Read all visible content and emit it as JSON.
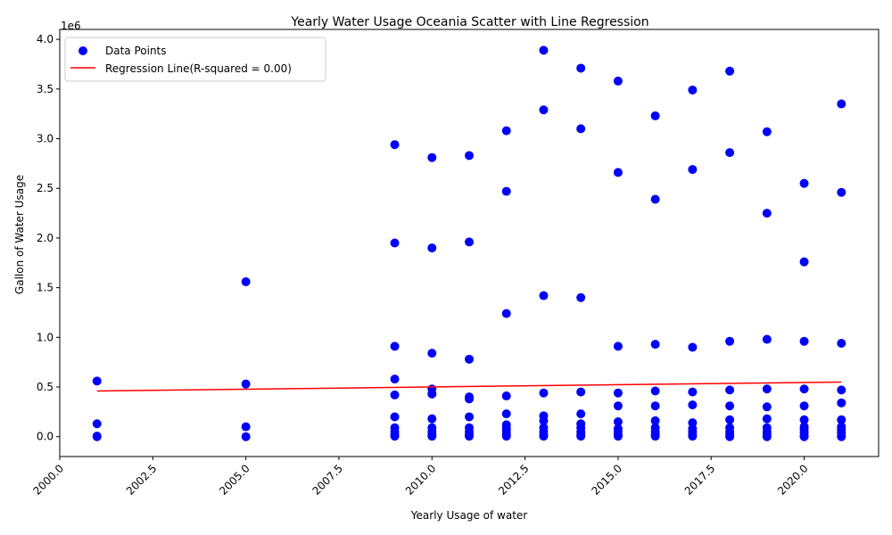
{
  "chart_data": {
    "type": "scatter",
    "title": "Yearly Water Usage Oceania Scatter with Line Regression",
    "xlabel": "Yearly Usage of water",
    "ylabel": "Gallon of Water Usage",
    "y_offset_label": "1e6",
    "xlim": [
      2000,
      2022
    ],
    "ylim": [
      -200000,
      4100000
    ],
    "x_ticks": [
      2000.0,
      2002.5,
      2005.0,
      2007.5,
      2010.0,
      2012.5,
      2015.0,
      2017.5,
      2020.0
    ],
    "x_tick_labels": [
      "2000.0",
      "2002.5",
      "2005.0",
      "2007.5",
      "2010.0",
      "2012.5",
      "2015.0",
      "2017.5",
      "2020.0"
    ],
    "y_ticks": [
      0,
      500000,
      1000000,
      1500000,
      2000000,
      2500000,
      3000000,
      3500000,
      4000000
    ],
    "y_tick_labels": [
      "0.0",
      "0.5",
      "1.0",
      "1.5",
      "2.0",
      "2.5",
      "3.0",
      "3.5",
      "4.0"
    ],
    "grid": false,
    "legend_position": "top-left",
    "series": [
      {
        "name": "Data Points",
        "kind": "scatter",
        "color": "#0000ff",
        "x": [
          2001,
          2001,
          2001,
          2001,
          2005,
          2005,
          2005,
          2005,
          2009,
          2009,
          2009,
          2009,
          2009,
          2009,
          2009,
          2009,
          2009,
          2009,
          2010,
          2010,
          2010,
          2010,
          2010,
          2010,
          2010,
          2010,
          2010,
          2010,
          2011,
          2011,
          2011,
          2011,
          2011,
          2011,
          2011,
          2011,
          2011,
          2011,
          2012,
          2012,
          2012,
          2012,
          2012,
          2012,
          2012,
          2012,
          2012,
          2012,
          2013,
          2013,
          2013,
          2013,
          2013,
          2013,
          2013,
          2013,
          2013,
          2013,
          2014,
          2014,
          2014,
          2014,
          2014,
          2014,
          2014,
          2014,
          2014,
          2014,
          2015,
          2015,
          2015,
          2015,
          2015,
          2015,
          2015,
          2015,
          2015,
          2015,
          2016,
          2016,
          2016,
          2016,
          2016,
          2016,
          2016,
          2016,
          2016,
          2016,
          2017,
          2017,
          2017,
          2017,
          2017,
          2017,
          2017,
          2017,
          2017,
          2017,
          2018,
          2018,
          2018,
          2018,
          2018,
          2018,
          2018,
          2018,
          2018,
          2018,
          2019,
          2019,
          2019,
          2019,
          2019,
          2019,
          2019,
          2019,
          2019,
          2019,
          2020,
          2020,
          2020,
          2020,
          2020,
          2020,
          2020,
          2020,
          2020,
          2020,
          2020,
          2021,
          2021,
          2021,
          2021,
          2021,
          2021,
          2021,
          2021,
          2021,
          2021,
          2021
        ],
        "y": [
          560000,
          130000,
          5000,
          0,
          1560000,
          530000,
          100000,
          0,
          2940000,
          1950000,
          910000,
          580000,
          420000,
          200000,
          90000,
          50000,
          20000,
          5000,
          2810000,
          1900000,
          840000,
          480000,
          430000,
          180000,
          90000,
          50000,
          20000,
          5000,
          2830000,
          1960000,
          780000,
          400000,
          380000,
          200000,
          90000,
          50000,
          20000,
          5000,
          3080000,
          2470000,
          1240000,
          410000,
          230000,
          120000,
          80000,
          50000,
          20000,
          5000,
          3890000,
          3290000,
          1420000,
          440000,
          210000,
          160000,
          90000,
          50000,
          20000,
          5000,
          3710000,
          3100000,
          1400000,
          450000,
          230000,
          130000,
          90000,
          50000,
          20000,
          5000,
          3580000,
          2660000,
          910000,
          440000,
          310000,
          150000,
          80000,
          50000,
          20000,
          5000,
          3230000,
          2390000,
          930000,
          460000,
          310000,
          160000,
          90000,
          50000,
          20000,
          5000,
          3490000,
          2690000,
          900000,
          450000,
          320000,
          140000,
          80000,
          50000,
          20000,
          5000,
          3680000,
          2860000,
          960000,
          470000,
          310000,
          170000,
          90000,
          50000,
          20000,
          0,
          3070000,
          2250000,
          980000,
          480000,
          300000,
          180000,
          90000,
          50000,
          20000,
          0,
          2550000,
          1760000,
          960000,
          480000,
          310000,
          170000,
          100000,
          70000,
          40000,
          10000,
          0,
          3350000,
          2460000,
          940000,
          470000,
          340000,
          170000,
          100000,
          70000,
          40000,
          10000,
          0
        ]
      },
      {
        "name": "Regression Line(R-squared = 0.00)",
        "kind": "line",
        "color": "#ff0000",
        "x": [
          2001,
          2021
        ],
        "y": [
          460000,
          550000
        ]
      }
    ]
  }
}
